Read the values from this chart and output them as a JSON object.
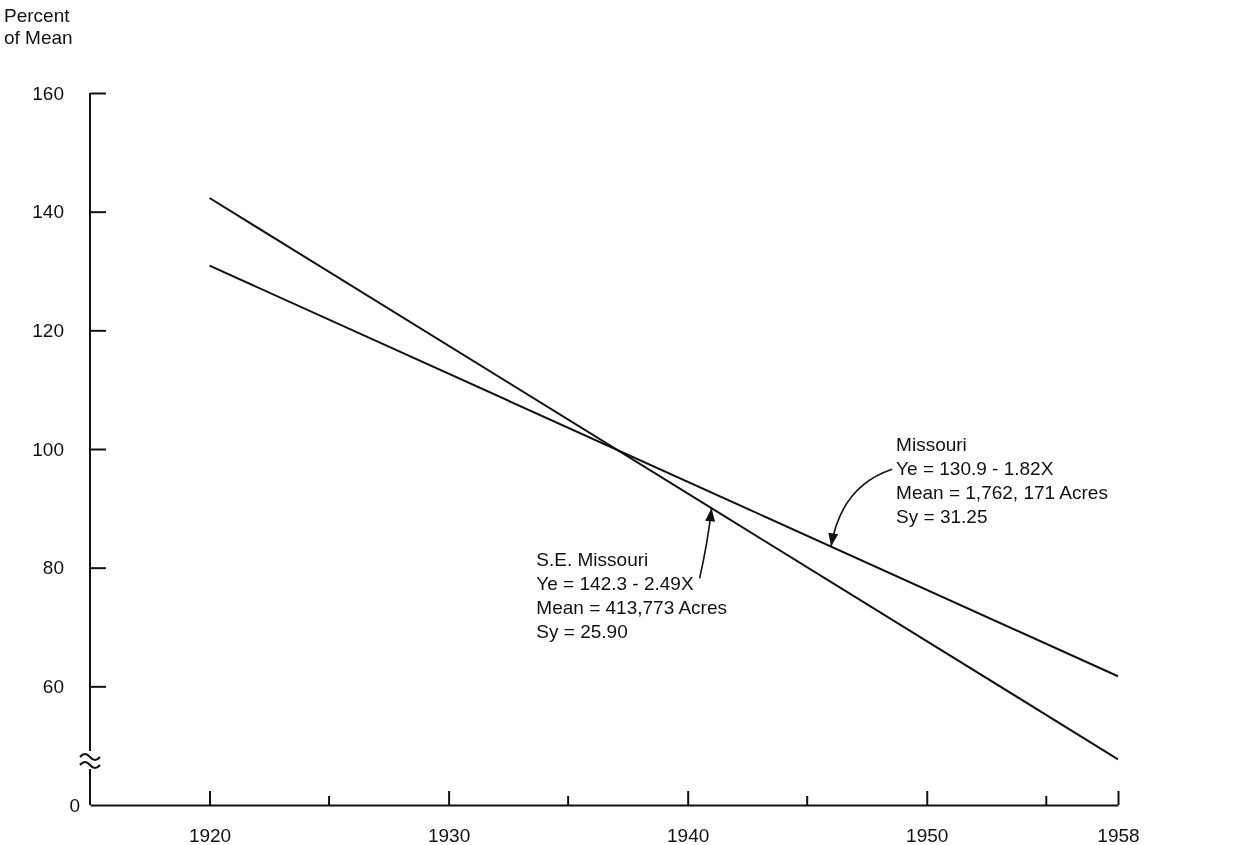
{
  "chart_data": {
    "type": "line",
    "ylabel": "Percent of Mean",
    "x": [
      1920,
      1958
    ],
    "series": [
      {
        "color": "#111111",
        "values": [
          130.9,
          61.7
        ]
      },
      {
        "color": "#111111",
        "values": [
          142.3,
          47.7
        ]
      }
    ],
    "xlim": [
      1915,
      1958
    ],
    "xticks": [
      1920,
      {
        "value": 1925,
        "label": null
      },
      1930,
      {
        "value": 1935,
        "label": null
      },
      1940,
      {
        "value": 1945,
        "label": null
      },
      1950,
      {
        "value": 1955,
        "label": null
      },
      1958
    ],
    "ylim": [
      40,
      160
    ],
    "yticks": [
      60,
      80,
      100,
      120,
      140,
      160
    ],
    "annotations": [
      "0",
      {
        "text": "Missouri\nYe = 130.9 - 1.82X\nMean = 1,762, 171 Acres\nSy = 31.25",
        "x": 1946,
        "y": 83.6
      },
      {
        "text": "S.E. Missouri\nYe = 142.3 - 2.49X\nMean = 413,773 Acres\nSy = 25.90",
        "x": 1941,
        "y": 90.0
      }
    ],
    "grid": false,
    "marker": "none",
    "line_style": "solid"
  }
}
